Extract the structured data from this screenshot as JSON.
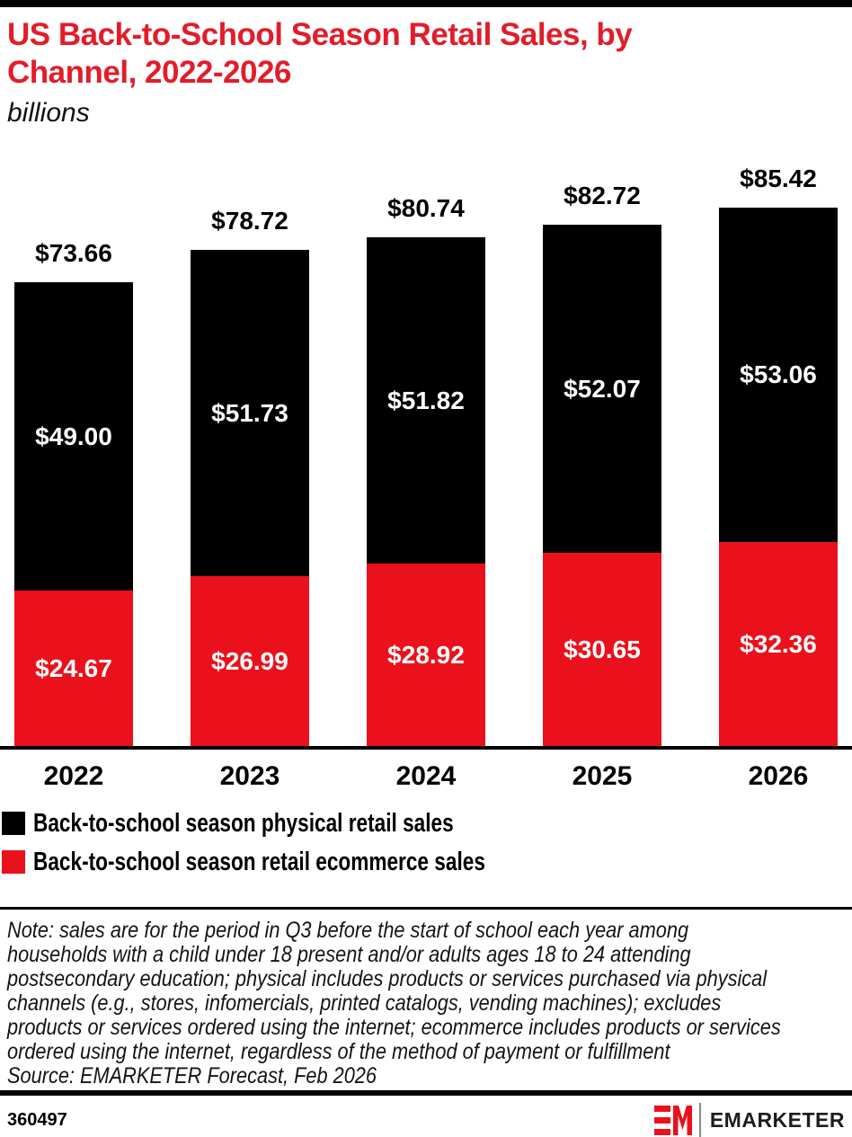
{
  "colors": {
    "title_red": "#e21d29",
    "bar_red": "#ea111c",
    "bar_black": "#000000",
    "text_black": "#000000",
    "white": "#ffffff"
  },
  "header": {
    "title_lines": [
      "US Back-to-School Season Retail Sales, by",
      "Channel, 2022-2026"
    ],
    "subtitle": "billions"
  },
  "chart_data": {
    "type": "bar",
    "stacked": true,
    "title": "US Back-to-School Season Retail Sales, by Channel, 2022-2026",
    "units": "billions",
    "value_prefix": "$",
    "categories": [
      "2022",
      "2023",
      "2024",
      "2025",
      "2026"
    ],
    "series": [
      {
        "name": "Back-to-school season physical retail sales",
        "color": "#000000",
        "stack_position": "top",
        "values": [
          49.0,
          51.73,
          51.82,
          52.07,
          53.06
        ],
        "labels": [
          "$49.00",
          "$51.73",
          "$51.82",
          "$52.07",
          "$53.06"
        ]
      },
      {
        "name": "Back-to-school season retail ecommerce sales",
        "color": "#ea111c",
        "stack_position": "bottom",
        "values": [
          24.67,
          26.99,
          28.92,
          30.65,
          32.36
        ],
        "labels": [
          "$24.67",
          "$26.99",
          "$28.92",
          "$30.65",
          "$32.36"
        ]
      }
    ],
    "totals": [
      73.66,
      78.72,
      80.74,
      82.72,
      85.42
    ],
    "total_labels": [
      "$73.66",
      "$78.72",
      "$80.74",
      "$82.72",
      "$85.42"
    ],
    "ylim": [
      0,
      90
    ],
    "grid": false,
    "axis_line": "bottom",
    "legend_position": "bottom-left"
  },
  "note": {
    "lines": [
      "Note: sales are for the period in Q3 before the start of school each year among",
      "households with a child under 18 present and/or adults ages 18 to 24 attending",
      "postsecondary education; physical includes products or services purchased via physical",
      "channels (e.g., stores, infomercials, printed catalogs, vending machines); excludes",
      "products or services ordered using the internet; ecommerce includes products or services",
      "ordered using the internet, regardless of the method of payment or fulfillment"
    ],
    "source": "Source: EMARKETER Forecast, Feb 2026"
  },
  "footer": {
    "chart_id": "360497",
    "brand_name": "EMARKETER"
  }
}
